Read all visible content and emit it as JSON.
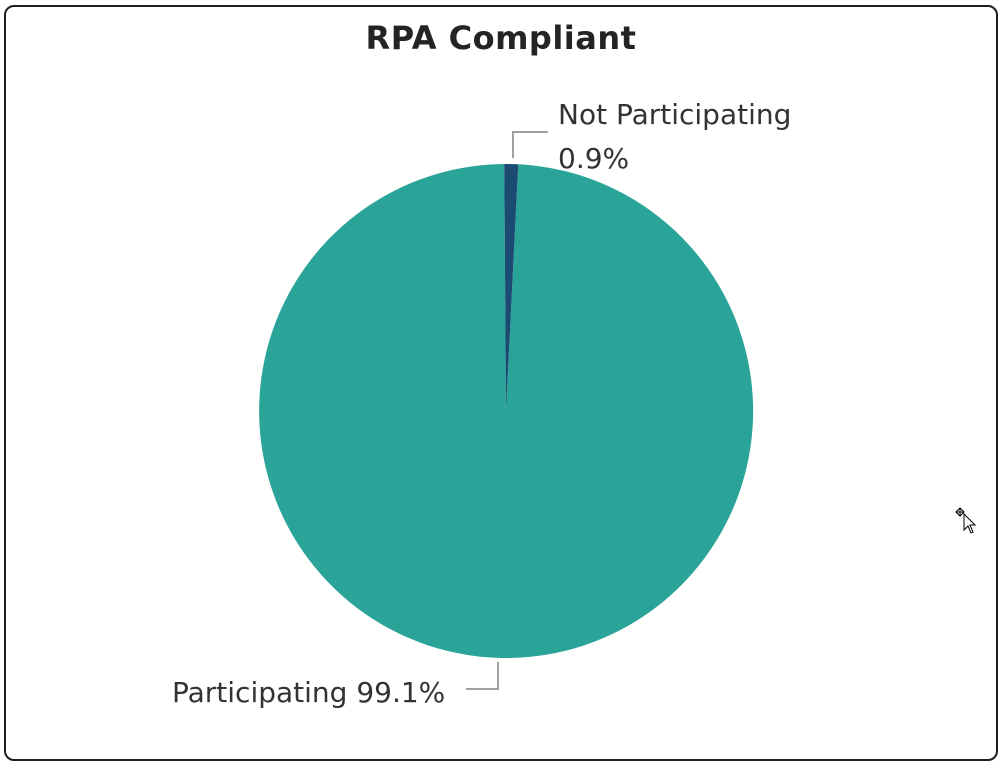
{
  "chart_data": {
    "type": "pie",
    "title": "RPA Compliant",
    "slices": [
      {
        "label": "Participating",
        "value": 99.1,
        "display": "99.1%",
        "color": "#2aa398"
      },
      {
        "label": "Not Participating",
        "value": 0.9,
        "display": "0.9%",
        "color": "#1b4a73"
      }
    ],
    "start_angle_deg": 0,
    "direction": "counterclockwise-from-top-for-small-slice",
    "label_color": "#333333",
    "leader_line_color": "#a0a0a0"
  }
}
